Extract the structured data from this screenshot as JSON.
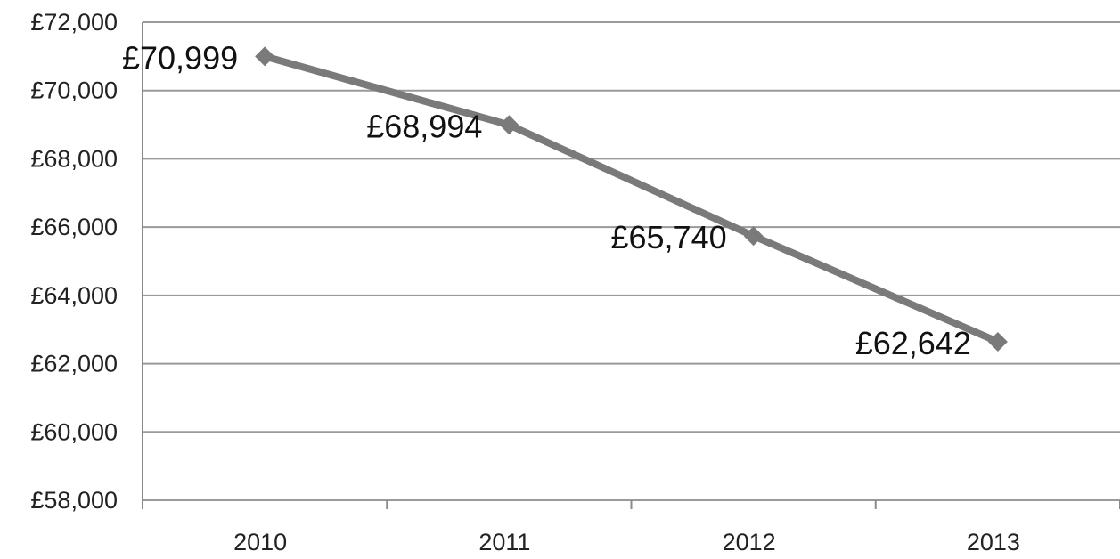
{
  "chart_data": {
    "type": "line",
    "title": "",
    "xlabel": "",
    "ylabel": "",
    "categories": [
      "2010",
      "2011",
      "2012",
      "2013"
    ],
    "values": [
      70999,
      68994,
      65740,
      62642
    ],
    "data_labels": [
      "£70,999",
      "£68,994",
      "£65,740",
      "£62,642"
    ],
    "ylim": [
      58000,
      72000
    ],
    "y_ticks": [
      58000,
      60000,
      62000,
      64000,
      66000,
      68000,
      70000,
      72000
    ],
    "y_tick_labels": [
      "£58,000",
      "£60,000",
      "£62,000",
      "£64,000",
      "£66,000",
      "£68,000",
      "£70,000",
      "£72,000"
    ],
    "grid": true,
    "legend": "none",
    "colors": {
      "series": "#7a7a7a",
      "grid": "#9a9a9a",
      "text": "#222222"
    }
  }
}
